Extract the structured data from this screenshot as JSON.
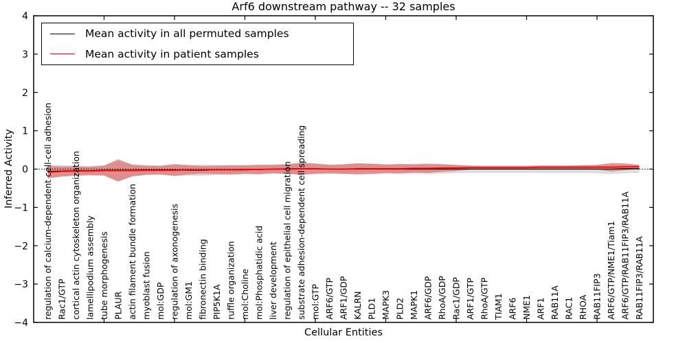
{
  "chart_data": {
    "type": "line",
    "title": "Arf6 downstream pathway -- 32 samples",
    "xlabel": "Cellular Entities",
    "ylabel": "Inferred Activity",
    "ylim": [
      -4,
      4
    ],
    "yticks": [
      -4,
      -3,
      -2,
      -1,
      0,
      1,
      2,
      3,
      4
    ],
    "xtick_positions": [
      5,
      10,
      15,
      20,
      25,
      30,
      35,
      40
    ],
    "grid": false,
    "zero_line_style": "dotted",
    "legend_position": "upper left",
    "categories": [
      "regulation of calcium-dependent cell-cell adhesion",
      "Rac1/GTP",
      "cortical actin cytoskeleton organization",
      "lamellipodium assembly",
      "tube morphogenesis",
      "PLAUR",
      "actin filament bundle formation",
      "myoblast fusion",
      "mol:GDP",
      "regulation of axonogenesis",
      "mol:GM1",
      "fibronectin binding",
      "PIP5K1A",
      "ruffle organization",
      "mol:Choline",
      "mol:Phosphatidic acid",
      "liver development",
      "regulation of epithelial cell migration",
      "substrate adhesion-dependent cell spreading",
      "mol:GTP",
      "ARF6/GTP",
      "ARF1/GDP",
      "KALRN",
      "PLD1",
      "MAPK3",
      "PLD2",
      "MAPK1",
      "ARF6/GDP",
      "RhoA/GDP",
      "Rac1/GDP",
      "ARF1/GTP",
      "RhoA/GTP",
      "TIAM1",
      "ARF6",
      "NME1",
      "ARF1",
      "RAB11A",
      "RAC1",
      "RHOA",
      "RAB11FIP3",
      "ARF6/GTP/NME1/Tiam1",
      "ARF6/GTP/RAB11FIP3/RAB11A",
      "RAB11FIP3/RAB11A"
    ],
    "series": [
      {
        "name": "Mean activity in all permuted samples",
        "color": "#000000",
        "band_color": "#aaaaaa",
        "band_opacity": 0.4,
        "line_width": 1.3,
        "values": [
          -0.06,
          -0.05,
          -0.04,
          -0.04,
          -0.03,
          -0.03,
          -0.03,
          -0.02,
          -0.02,
          -0.02,
          -0.03,
          -0.03,
          -0.02,
          -0.02,
          -0.02,
          -0.01,
          0,
          0.01,
          0.01,
          0.01,
          0,
          0,
          0,
          0,
          0,
          0,
          0,
          0,
          0,
          0,
          0,
          0,
          0,
          0,
          0,
          0,
          0,
          0,
          0,
          0,
          0,
          0.01,
          0.01
        ],
        "band_halfwidth": [
          0.18,
          0.15,
          0.13,
          0.12,
          0.13,
          0.3,
          0.16,
          0.13,
          0.12,
          0.16,
          0.14,
          0.15,
          0.13,
          0.12,
          0.12,
          0.13,
          0.12,
          0.13,
          0.17,
          0.14,
          0.12,
          0.13,
          0.15,
          0.14,
          0.12,
          0.13,
          0.12,
          0.13,
          0.12,
          0.11,
          0.1,
          0.1,
          0.1,
          0.1,
          0.1,
          0.1,
          0.1,
          0.1,
          0.1,
          0.11,
          0.13,
          0.12,
          0.11
        ]
      },
      {
        "name": "Mean activity in patient samples",
        "color": "#ff0000",
        "band_color": "#dd2222",
        "band_opacity": 0.42,
        "line_width": 1.8,
        "values": [
          -0.08,
          -0.06,
          -0.05,
          -0.05,
          -0.04,
          -0.04,
          -0.04,
          -0.03,
          -0.03,
          -0.03,
          -0.02,
          -0.02,
          -0.02,
          -0.02,
          -0.01,
          -0.01,
          0,
          0,
          0.01,
          0.01,
          0,
          0,
          0.01,
          0.01,
          0.01,
          0.01,
          0.02,
          0.02,
          0.03,
          0.03,
          0.04,
          0.04,
          0.04,
          0.04,
          0.04,
          0.05,
          0.05,
          0.05,
          0.05,
          0.05,
          0.05,
          0.06,
          0.06
        ],
        "band_halfwidth": [
          0.16,
          0.13,
          0.12,
          0.11,
          0.13,
          0.28,
          0.15,
          0.12,
          0.11,
          0.15,
          0.12,
          0.1,
          0.11,
          0.12,
          0.11,
          0.12,
          0.11,
          0.12,
          0.15,
          0.13,
          0.11,
          0.12,
          0.14,
          0.13,
          0.11,
          0.12,
          0.11,
          0.12,
          0.1,
          0.08,
          0.05,
          0.04,
          0.04,
          0.04,
          0.04,
          0.04,
          0.04,
          0.04,
          0.05,
          0.06,
          0.11,
          0.09,
          0.05
        ]
      }
    ]
  }
}
